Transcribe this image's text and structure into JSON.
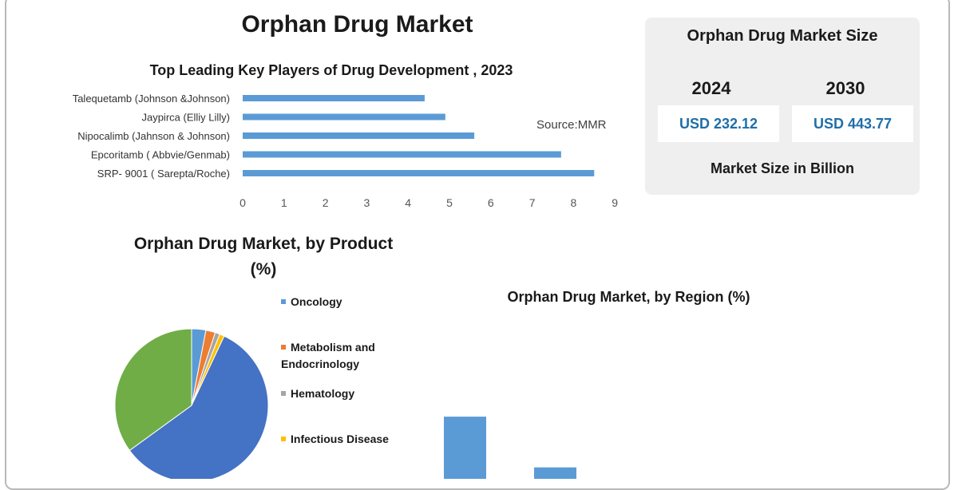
{
  "title": "Orphan Drug Market",
  "source": "Source:MMR",
  "colors": {
    "bar": "#5b9bd5",
    "pie": [
      "#5b9bd5",
      "#ed7d31",
      "#a5a5a5",
      "#ffc000",
      "#4472c4",
      "#70ad47"
    ]
  },
  "market_size": {
    "title": "Orphan Drug Market Size",
    "years": [
      "2024",
      "2030"
    ],
    "values": [
      "USD 232.12",
      "USD 443.77"
    ],
    "unit_label": "Market Size in Billion"
  },
  "chart_data": [
    {
      "type": "bar",
      "orientation": "horizontal",
      "title": "Top Leading Key Players of Drug Development , 2023",
      "categories": [
        "Talequetamb  (Johnson &Johnson)",
        "Jaypirca (Elliy Lilly)",
        "Nipocalimb (Jahnson & Johnson)",
        "Epcoritamb ( Abbvie/Genmab)",
        "SRP- 9001 ( Sarepta/Roche)"
      ],
      "values": [
        4.4,
        4.9,
        5.6,
        7.7,
        8.5
      ],
      "xlim": [
        0,
        9
      ],
      "xticks": [
        "0",
        "1",
        "2",
        "3",
        "4",
        "5",
        "6",
        "7",
        "8",
        "9"
      ],
      "grid": false
    },
    {
      "type": "pie",
      "title": "Orphan Drug Market, by Product (%)",
      "categories": [
        "Oncology",
        "Metabolism and Endocrinology",
        "Hematology",
        "Infectious Disease",
        "",
        ""
      ],
      "values": [
        3,
        2,
        1,
        1,
        58,
        35
      ],
      "legend_visible": [
        "Oncology",
        "Metabolism and Endocrinology",
        "Hematology",
        "Infectious Disease"
      ],
      "legend": "right"
    },
    {
      "type": "bar",
      "title": "Orphan Drug Market, by Region (%)",
      "values": [
        38,
        7
      ],
      "ylim": [
        0,
        45
      ]
    }
  ]
}
